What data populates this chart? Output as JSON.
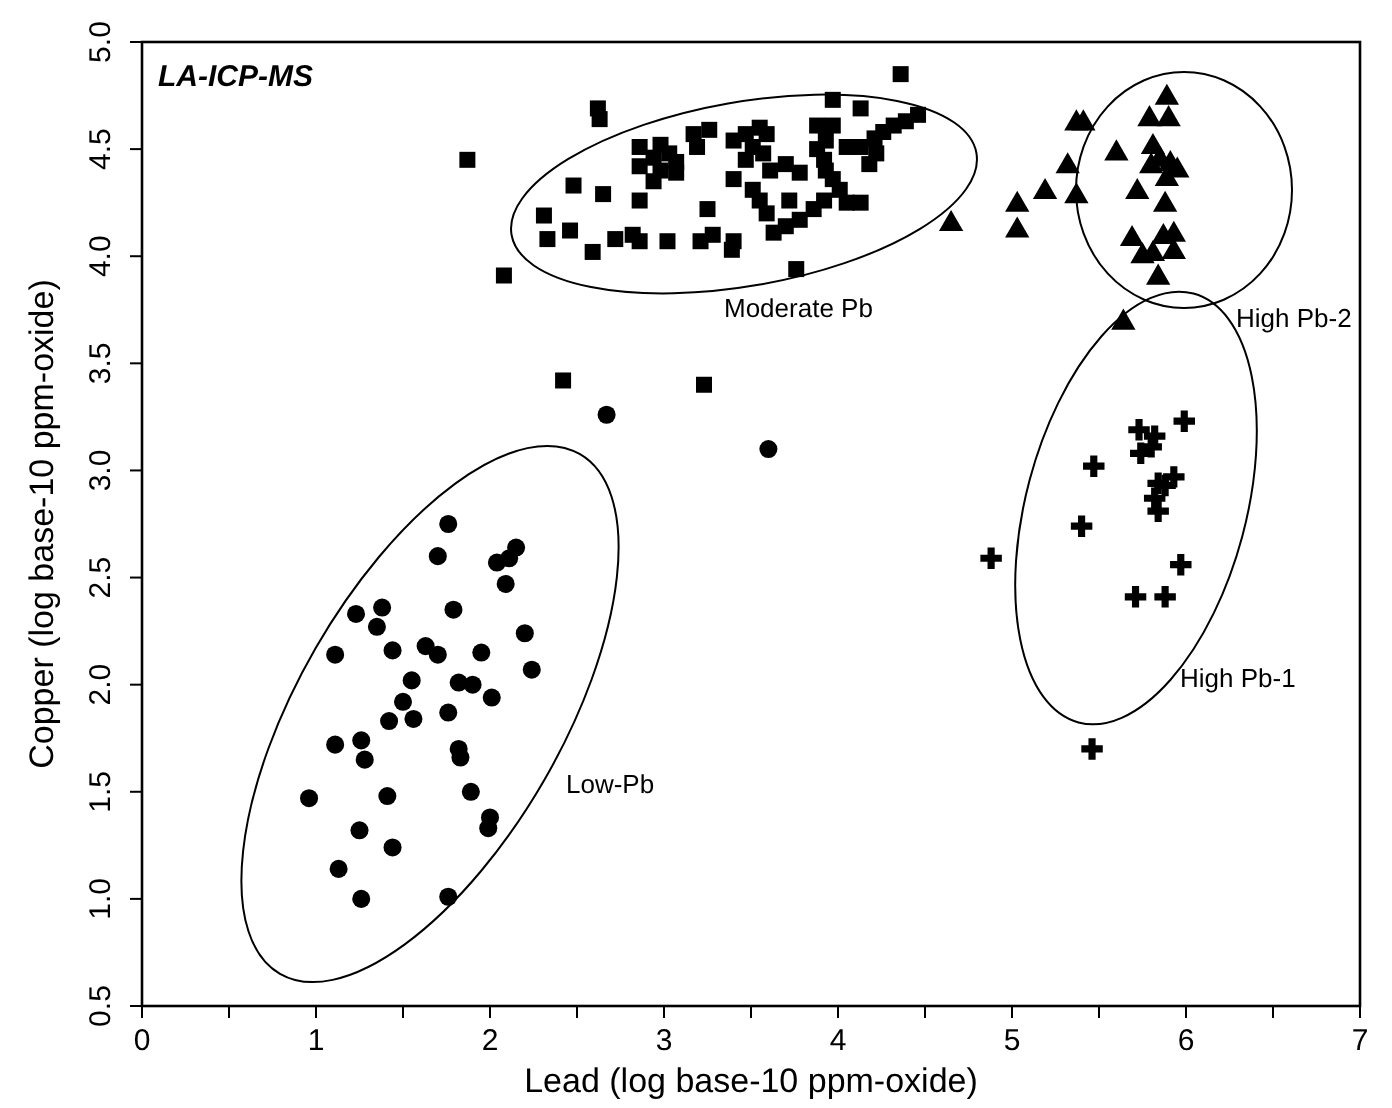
{
  "chart_data": {
    "type": "scatter",
    "xlabel": "Lead (log base-10 ppm-oxide)",
    "ylabel": "Copper (log base-10 ppm-oxide)",
    "xlim": [
      0,
      7
    ],
    "xticks": [
      0,
      {
        "value": 0.5,
        "label": null
      },
      1,
      {
        "value": 1.5,
        "label": null
      },
      2,
      {
        "value": 2.5,
        "label": null
      },
      3,
      {
        "value": 3.5,
        "label": null
      },
      4,
      {
        "value": 4.5,
        "label": null
      },
      5,
      {
        "value": 5.5,
        "label": null
      },
      6,
      {
        "value": 6.5,
        "label": null
      },
      7
    ],
    "ylim": [
      0.5,
      5
    ],
    "yticks": [
      0.5,
      {
        "value": 1,
        "label": "1.0"
      },
      1.5,
      {
        "value": 2,
        "label": "2.0"
      },
      2.5,
      {
        "value": 3,
        "label": "3.0"
      },
      3.5,
      {
        "value": 4,
        "label": "4.0"
      },
      4.5,
      {
        "value": 5,
        "label": "5.0"
      }
    ],
    "annotations": [
      "LA-ICP-MS",
      "Low-Pb",
      "Moderate Pb",
      "High Pb-2",
      "High Pb-1"
    ],
    "series": [
      {
        "color": "#000000",
        "marker": "circle",
        "x": [
          2.67,
          1.76,
          1.7,
          2.15,
          2.04,
          2.09,
          2.11,
          1.23,
          1.38,
          1.35,
          1.79,
          2.2,
          1.11,
          1.44,
          1.63,
          1.7,
          1.95,
          2.24,
          1.55,
          1.82,
          1.9,
          2.01,
          1.5,
          1.56,
          1.42,
          1.76,
          1.11,
          1.26,
          1.28,
          1.82,
          1.83,
          0.96,
          1.41,
          1.89,
          2.0,
          1.99,
          1.25,
          1.44,
          1.13,
          1.26,
          1.76,
          3.6
        ],
        "values": [
          3.26,
          2.75,
          2.6,
          2.64,
          2.57,
          2.47,
          2.59,
          2.33,
          2.36,
          2.27,
          2.35,
          2.24,
          2.14,
          2.16,
          2.18,
          2.14,
          2.15,
          2.07,
          2.02,
          2.01,
          2.0,
          1.94,
          1.92,
          1.84,
          1.83,
          1.87,
          1.72,
          1.74,
          1.65,
          1.7,
          1.66,
          1.47,
          1.48,
          1.5,
          1.38,
          1.33,
          1.32,
          1.24,
          1.14,
          1.0,
          1.01,
          3.1
        ]
      },
      {
        "color": "#000000",
        "marker": "square",
        "x": [
          4.36,
          2.62,
          2.63,
          3.97,
          4.13,
          4.46,
          4.39,
          4.32,
          4.26,
          4.21,
          4.13,
          4.22,
          4.18,
          1.87,
          3.26,
          3.17,
          2.86,
          2.98,
          3.03,
          3.07,
          2.94,
          2.86,
          2.98,
          3.07,
          2.94,
          3.19,
          3.4,
          3.47,
          3.55,
          3.59,
          3.51,
          3.57,
          3.47,
          3.61,
          3.7,
          3.78,
          3.4,
          3.51,
          3.55,
          3.59,
          3.72,
          3.88,
          3.97,
          3.93,
          3.88,
          3.92,
          3.93,
          3.97,
          4.01,
          4.05,
          4.13,
          4.05,
          3.92,
          3.86,
          3.78,
          3.7,
          3.63,
          2.48,
          2.65,
          2.86,
          3.25,
          2.31,
          2.46,
          2.33,
          2.59,
          2.72,
          2.82,
          2.86,
          3.02,
          3.21,
          3.28,
          3.4,
          3.39,
          3.76,
          2.08,
          2.42,
          3.23
        ],
        "values": [
          4.85,
          4.69,
          4.64,
          4.73,
          4.69,
          4.66,
          4.63,
          4.61,
          4.58,
          4.55,
          4.51,
          4.48,
          4.43,
          4.45,
          4.59,
          4.57,
          4.51,
          4.52,
          4.48,
          4.44,
          4.46,
          4.42,
          4.4,
          4.39,
          4.35,
          4.51,
          4.54,
          4.57,
          4.6,
          4.57,
          4.51,
          4.48,
          4.45,
          4.4,
          4.43,
          4.39,
          4.36,
          4.31,
          4.26,
          4.2,
          4.26,
          4.61,
          4.61,
          4.54,
          4.5,
          4.45,
          4.4,
          4.36,
          4.31,
          4.25,
          4.25,
          4.51,
          4.26,
          4.22,
          4.17,
          4.14,
          4.11,
          4.33,
          4.29,
          4.26,
          4.22,
          4.19,
          4.12,
          4.08,
          4.02,
          4.08,
          4.1,
          4.07,
          4.07,
          4.07,
          4.1,
          4.07,
          4.03,
          3.94,
          3.91,
          3.42,
          3.4
        ]
      },
      {
        "color": "#000000",
        "marker": "triangle",
        "x": [
          4.65,
          5.03,
          5.03,
          5.19,
          5.37,
          5.32,
          5.37,
          5.41,
          5.6,
          5.72,
          5.79,
          5.89,
          5.9,
          5.81,
          5.85,
          5.91,
          5.95,
          5.89,
          5.8,
          5.88,
          5.69,
          5.75,
          5.81,
          5.87,
          5.93,
          5.93,
          5.84,
          5.64
        ],
        "values": [
          4.15,
          4.24,
          4.12,
          4.3,
          4.28,
          4.42,
          4.62,
          4.62,
          4.48,
          4.3,
          4.64,
          4.74,
          4.64,
          4.51,
          4.45,
          4.43,
          4.4,
          4.36,
          4.42,
          4.24,
          4.08,
          4.0,
          4.01,
          4.09,
          4.1,
          4.02,
          3.9,
          3.69
        ]
      },
      {
        "color": "#000000",
        "marker": "cross",
        "x": [
          4.88,
          5.47,
          5.4,
          5.73,
          5.82,
          5.8,
          5.74,
          5.99,
          5.84,
          5.88,
          5.93,
          5.82,
          5.84,
          5.97,
          5.71,
          5.88,
          5.46
        ],
        "values": [
          2.59,
          3.02,
          2.74,
          3.19,
          3.16,
          3.11,
          3.08,
          3.23,
          2.94,
          2.93,
          2.97,
          2.87,
          2.81,
          2.56,
          2.41,
          2.41,
          1.7
        ]
      }
    ]
  }
}
